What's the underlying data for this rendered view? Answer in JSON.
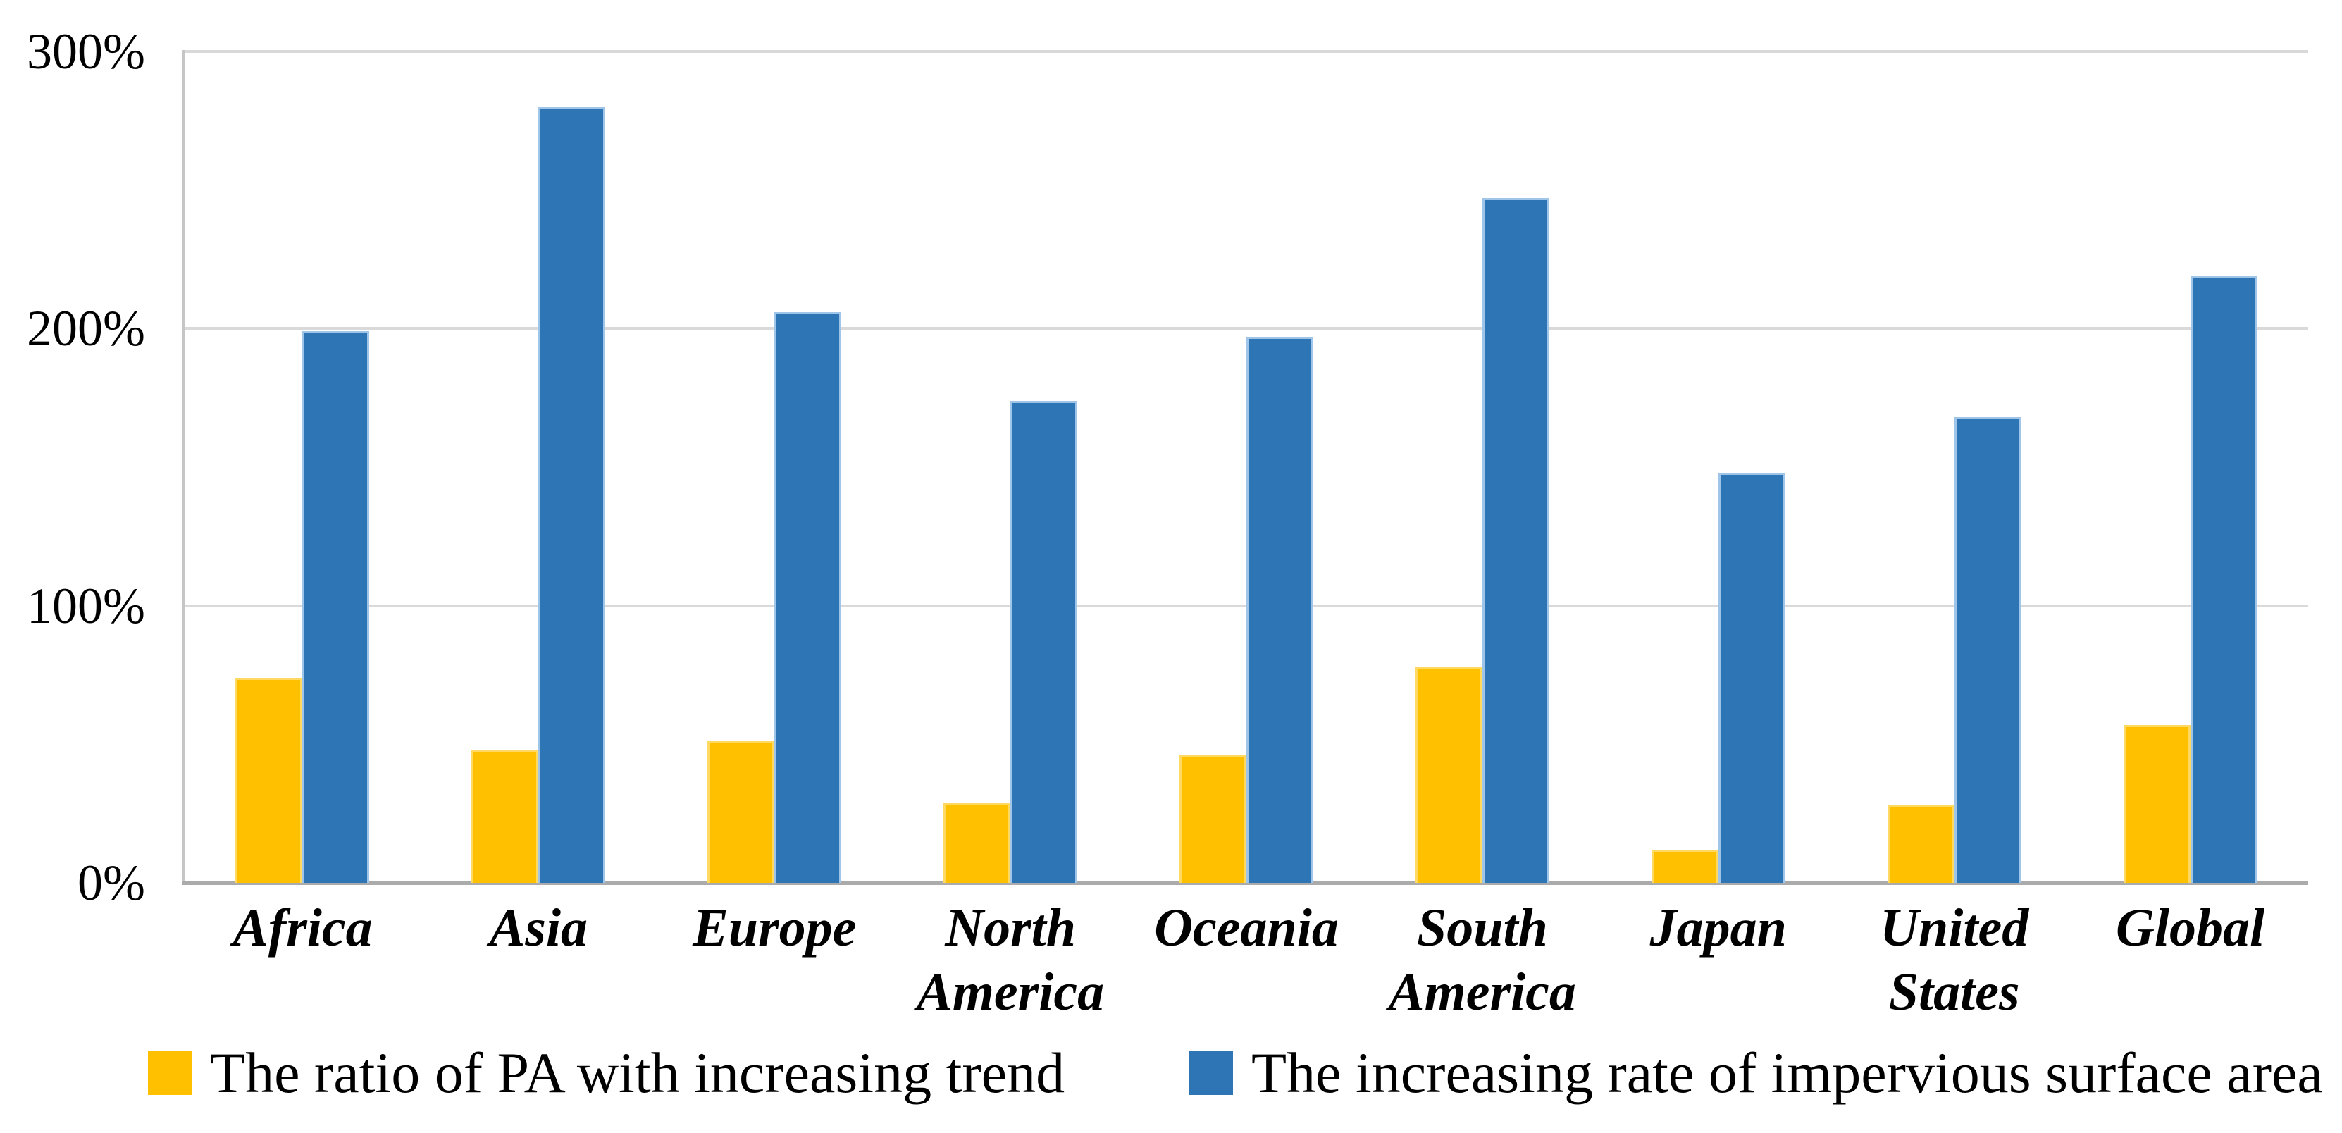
{
  "chart_data": {
    "type": "bar",
    "categories": [
      "Africa",
      "Asia",
      "Europe",
      "North America",
      "Oceania",
      "South America",
      "Japan",
      "United States",
      "Global"
    ],
    "category_labels": [
      "Africa",
      "Asia",
      "Europe",
      "North\nAmerica",
      "Oceania",
      "South\nAmerica",
      "Japan",
      "United\nStates",
      "Global"
    ],
    "series": [
      {
        "name": "The ratio of PA with increasing trend",
        "color": "#FFC000",
        "values": [
          74,
          48,
          51,
          29,
          46,
          78,
          12,
          28,
          57
        ]
      },
      {
        "name": "The increasing rate of impervious surface area",
        "color": "#2E75B6",
        "values": [
          199,
          280,
          206,
          174,
          197,
          247,
          148,
          168,
          219
        ]
      }
    ],
    "y_axis": {
      "min": 0,
      "max": 300,
      "ticks": [
        "0%",
        "100%",
        "200%",
        "300%"
      ]
    },
    "xlabel": "",
    "ylabel": "",
    "title": "",
    "grid": true,
    "gridline_color": "#D9D9D9",
    "legend_position": "bottom"
  }
}
